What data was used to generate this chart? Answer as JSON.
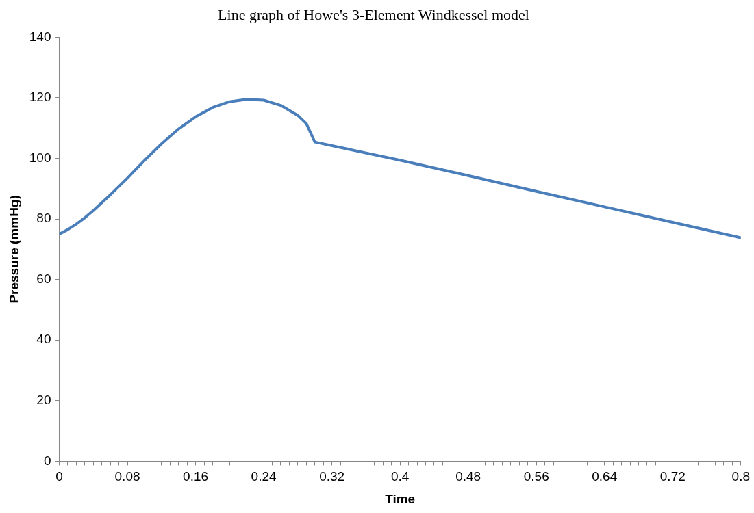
{
  "chart_data": {
    "type": "line",
    "title": "Line graph of Howe's 3-Element Windkessel model",
    "xlabel": "Time",
    "ylabel": "Pressure (mmHg)",
    "series": [
      {
        "color": "#4a7ebb",
        "x": [
          0,
          0.01,
          0.02,
          0.03,
          0.04,
          0.06,
          0.08,
          0.1,
          0.12,
          0.14,
          0.16,
          0.18,
          0.2,
          0.22,
          0.24,
          0.26,
          0.28,
          0.29,
          0.3,
          0.4,
          0.48,
          0.56,
          0.64,
          0.72,
          0.8
        ],
        "values": [
          75,
          76.5,
          78.3,
          80.4,
          82.8,
          88,
          93.5,
          99.3,
          104.8,
          109.7,
          113.7,
          116.8,
          118.7,
          119.5,
          119.2,
          117.5,
          114.2,
          111.5,
          105.4,
          99.4,
          94.3,
          89.1,
          84,
          78.9,
          73.8
        ]
      }
    ],
    "xlim": [
      0,
      0.8
    ],
    "xticks": [
      0,
      {
        "value": 0.01,
        "label": null
      },
      {
        "value": 0.02,
        "label": null
      },
      {
        "value": 0.03,
        "label": null
      },
      {
        "value": 0.04,
        "label": null
      },
      {
        "value": 0.05,
        "label": null
      },
      {
        "value": 0.06,
        "label": null
      },
      {
        "value": 0.07,
        "label": null
      },
      0.08,
      {
        "value": 0.09,
        "label": null
      },
      {
        "value": 0.1,
        "label": null
      },
      {
        "value": 0.11,
        "label": null
      },
      {
        "value": 0.12,
        "label": null
      },
      {
        "value": 0.13,
        "label": null
      },
      {
        "value": 0.14,
        "label": null
      },
      {
        "value": 0.15,
        "label": null
      },
      0.16,
      {
        "value": 0.17,
        "label": null
      },
      {
        "value": 0.18,
        "label": null
      },
      {
        "value": 0.19,
        "label": null
      },
      {
        "value": 0.2,
        "label": null
      },
      {
        "value": 0.21,
        "label": null
      },
      {
        "value": 0.22,
        "label": null
      },
      {
        "value": 0.23,
        "label": null
      },
      0.24,
      {
        "value": 0.25,
        "label": null
      },
      {
        "value": 0.26,
        "label": null
      },
      {
        "value": 0.27,
        "label": null
      },
      {
        "value": 0.28,
        "label": null
      },
      {
        "value": 0.29,
        "label": null
      },
      {
        "value": 0.3,
        "label": null
      },
      {
        "value": 0.31,
        "label": null
      },
      0.32,
      {
        "value": 0.33,
        "label": null
      },
      {
        "value": 0.34,
        "label": null
      },
      {
        "value": 0.35,
        "label": null
      },
      {
        "value": 0.36,
        "label": null
      },
      {
        "value": 0.37,
        "label": null
      },
      {
        "value": 0.38,
        "label": null
      },
      {
        "value": 0.39,
        "label": null
      },
      0.4,
      {
        "value": 0.41,
        "label": null
      },
      {
        "value": 0.42,
        "label": null
      },
      {
        "value": 0.43,
        "label": null
      },
      {
        "value": 0.44,
        "label": null
      },
      {
        "value": 0.45,
        "label": null
      },
      {
        "value": 0.46,
        "label": null
      },
      {
        "value": 0.47,
        "label": null
      },
      0.48,
      {
        "value": 0.49,
        "label": null
      },
      {
        "value": 0.5,
        "label": null
      },
      {
        "value": 0.51,
        "label": null
      },
      {
        "value": 0.52,
        "label": null
      },
      {
        "value": 0.53,
        "label": null
      },
      {
        "value": 0.54,
        "label": null
      },
      {
        "value": 0.55,
        "label": null
      },
      0.56,
      {
        "value": 0.57,
        "label": null
      },
      {
        "value": 0.58,
        "label": null
      },
      {
        "value": 0.59,
        "label": null
      },
      {
        "value": 0.6,
        "label": null
      },
      {
        "value": 0.61,
        "label": null
      },
      {
        "value": 0.62,
        "label": null
      },
      {
        "value": 0.63,
        "label": null
      },
      0.64,
      {
        "value": 0.65,
        "label": null
      },
      {
        "value": 0.66,
        "label": null
      },
      {
        "value": 0.67,
        "label": null
      },
      {
        "value": 0.68,
        "label": null
      },
      {
        "value": 0.69,
        "label": null
      },
      {
        "value": 0.7,
        "label": null
      },
      {
        "value": 0.71,
        "label": null
      },
      0.72,
      {
        "value": 0.73,
        "label": null
      },
      {
        "value": 0.74,
        "label": null
      },
      {
        "value": 0.75,
        "label": null
      },
      {
        "value": 0.76,
        "label": null
      },
      {
        "value": 0.77,
        "label": null
      },
      {
        "value": 0.78,
        "label": null
      },
      {
        "value": 0.79,
        "label": null
      },
      0.8
    ],
    "ylim": [
      0,
      140
    ],
    "yticks": [
      0,
      20,
      40,
      60,
      80,
      100,
      120,
      140
    ],
    "grid": false,
    "legend": false,
    "marker": "none",
    "line_style": "solid"
  }
}
